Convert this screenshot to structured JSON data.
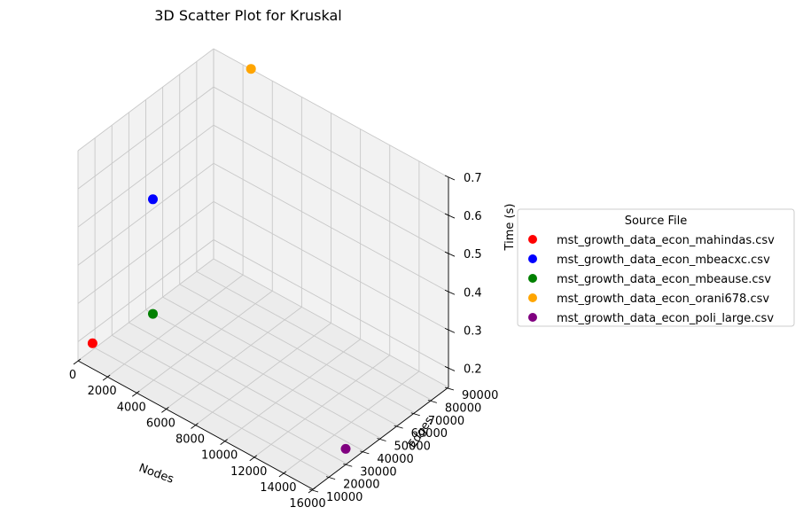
{
  "chart_data": {
    "type": "scatter",
    "projection": "3d",
    "title": "3D Scatter Plot for Kruskal",
    "xlabel": "Nodes",
    "ylabel": "Edges",
    "zlabel": "Time (s)",
    "xlim": [
      0,
      16000
    ],
    "ylim": [
      10000,
      90000
    ],
    "zlim": [
      0.15,
      0.7
    ],
    "xticks": [
      "0",
      "2000",
      "4000",
      "6000",
      "8000",
      "10000",
      "12000",
      "14000",
      "16000"
    ],
    "yticks": [
      "10000",
      "20000",
      "30000",
      "40000",
      "50000",
      "60000",
      "70000",
      "80000",
      "90000"
    ],
    "zticks": [
      "0.2",
      "0.3",
      "0.4",
      "0.5",
      "0.6",
      "0.7"
    ],
    "grid": true,
    "legend": {
      "title": "Source File",
      "placement": "center-right"
    },
    "series": [
      {
        "name": "mst_growth_data_econ_mahindas.csv",
        "color": "#ff0000",
        "x": 1258,
        "y": 7682,
        "z": 0.23
      },
      {
        "name": "mst_growth_data_econ_mbeacxc.csv",
        "color": "#0000ff",
        "x": 492,
        "y": 49920,
        "z": 0.45
      },
      {
        "name": "mst_growth_data_econ_mbeause.csv",
        "color": "#008000",
        "x": 492,
        "y": 49920,
        "z": 0.15
      },
      {
        "name": "mst_growth_data_econ_orani678.csv",
        "color": "#ffa500",
        "x": 2529,
        "y": 90158,
        "z": 0.7
      },
      {
        "name": "mst_growth_data_econ_poli_large.csv",
        "color": "#800080",
        "x": 15575,
        "y": 33033,
        "z": 0.17
      }
    ]
  }
}
